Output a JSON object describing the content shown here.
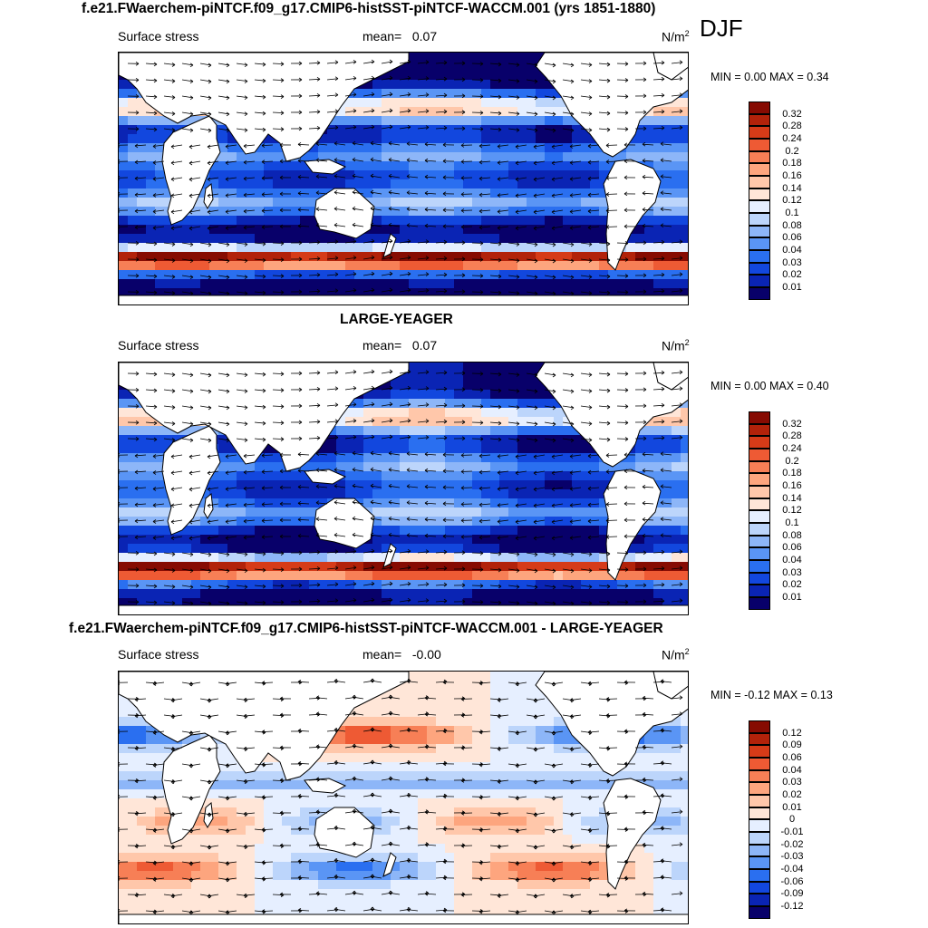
{
  "season": "DJF",
  "palette_seq": [
    "#08006a",
    "#0a24b4",
    "#1247de",
    "#2a6ff0",
    "#5a95f5",
    "#8db6f8",
    "#bcd5fb",
    "#e6efff",
    "#ffe6d8",
    "#ffc7aa",
    "#fda57e",
    "#f77f56",
    "#ee5a34",
    "#d63b18",
    "#b2220a",
    "#860b02"
  ],
  "colors": {
    "land": "#ffffff",
    "coast": "#000000",
    "arrow": "#000000"
  },
  "panels": [
    {
      "title": "f.e21.FWaerchem-piNTCF.f09_g17.CMIP6-histSST-piNTCF-WACCM.001 (yrs 1851-1880)",
      "left_label": "Surface stress",
      "mean_label": "mean=",
      "mean_value": "0.07",
      "units": "N/m",
      "units_sup": "2",
      "minmax": "MIN =   0.00 MAX =   0.34",
      "kind": "seq",
      "levels": [
        "0.32",
        "0.28",
        "0.24",
        "0.2",
        "0.18",
        "0.16",
        "0.14",
        "0.12",
        "0.1",
        "0.08",
        "0.06",
        "0.04",
        "0.03",
        "0.02",
        "0.01"
      ]
    },
    {
      "title": "LARGE-YEAGER",
      "left_label": "Surface stress",
      "mean_label": "mean=",
      "mean_value": "0.07",
      "units": "N/m",
      "units_sup": "2",
      "minmax": "MIN =   0.00 MAX =   0.40",
      "kind": "seq",
      "levels": [
        "0.32",
        "0.28",
        "0.24",
        "0.2",
        "0.18",
        "0.16",
        "0.14",
        "0.12",
        "0.1",
        "0.08",
        "0.06",
        "0.04",
        "0.03",
        "0.02",
        "0.01"
      ]
    },
    {
      "title": "f.e21.FWaerchem-piNTCF.f09_g17.CMIP6-histSST-piNTCF-WACCM.001 - LARGE-YEAGER",
      "left_label": "Surface stress",
      "mean_label": "mean=",
      "mean_value": "-0.00",
      "units": "N/m",
      "units_sup": "2",
      "minmax": "MIN =  -0.12 MAX =   0.13",
      "kind": "div",
      "levels": [
        "0.12",
        "0.09",
        "0.06",
        "0.04",
        "0.03",
        "0.02",
        "0.01",
        "0",
        "-0.01",
        "-0.02",
        "-0.03",
        "-0.04",
        "-0.06",
        "-0.09",
        "-0.12"
      ]
    }
  ]
}
